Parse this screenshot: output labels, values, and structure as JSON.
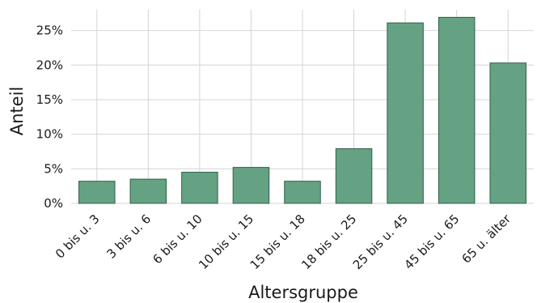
{
  "chart_data": {
    "type": "bar",
    "title": "",
    "xlabel": "Altersgruppe",
    "ylabel": "Anteil",
    "categories": [
      "0 bis u. 3",
      "3 bis u. 6",
      "6 bis u. 10",
      "10 bis u. 15",
      "15 bis u. 18",
      "18 bis u. 25",
      "25 bis u. 45",
      "45 bis u. 65",
      "65 u. älter"
    ],
    "values": [
      3.2,
      3.5,
      4.5,
      5.2,
      3.2,
      7.9,
      26.1,
      26.9,
      20.3
    ],
    "ylim": [
      0,
      28
    ],
    "yticks": [
      0,
      5,
      10,
      15,
      20,
      25
    ],
    "ytick_labels": [
      "0%",
      "5%",
      "10%",
      "15%",
      "20%",
      "25%"
    ],
    "grid": true,
    "legend": "none",
    "bar_color": "#64a283",
    "bar_edge_color": "#2f5f45"
  }
}
